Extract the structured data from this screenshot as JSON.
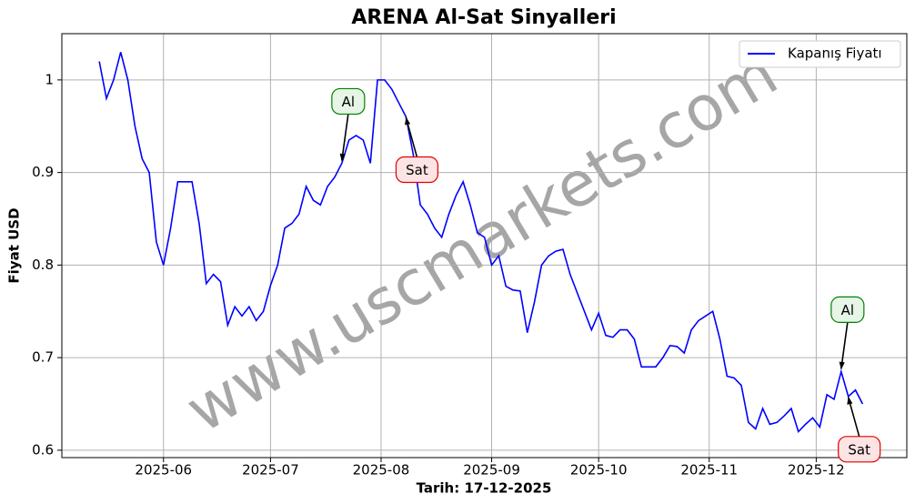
{
  "chart_data": {
    "type": "line",
    "title": "ARENA Al-Sat Sinyalleri",
    "xlabel": "Tarih: 17-12-2025",
    "ylabel": "Fiyat USD",
    "watermark": "www.uscmarkets.com",
    "legend": "upper right",
    "grid": true,
    "series": [
      {
        "name": "Kapanış Fiyatı",
        "color": "#0000ff",
        "values": [
          1.02,
          0.98,
          1.0,
          1.03,
          1.0,
          0.95,
          0.915,
          0.9,
          0.825,
          0.8,
          0.84,
          0.89,
          0.89,
          0.89,
          0.845,
          0.78,
          0.79,
          0.782,
          0.735,
          0.755,
          0.745,
          0.755,
          0.74,
          0.75,
          0.778,
          0.8,
          0.84,
          0.845,
          0.855,
          0.885,
          0.87,
          0.865,
          0.885,
          0.895,
          0.91,
          0.935,
          0.94,
          0.935,
          0.91,
          1.0,
          1.0,
          0.99,
          0.975,
          0.96,
          0.92,
          0.865,
          0.855,
          0.84,
          0.83,
          0.855,
          0.875,
          0.89,
          0.865,
          0.835,
          0.83,
          0.8,
          0.81,
          0.777,
          0.773,
          0.772,
          0.727,
          0.76,
          0.8,
          0.81,
          0.815,
          0.817,
          0.79,
          0.77,
          0.75,
          0.73,
          0.748,
          0.724,
          0.722,
          0.73,
          0.73,
          0.72,
          0.69,
          0.69,
          0.69,
          0.7,
          0.713,
          0.712,
          0.705,
          0.73,
          0.74,
          0.745,
          0.75,
          0.72,
          0.68,
          0.678,
          0.67,
          0.63,
          0.623,
          0.645,
          0.628,
          0.63,
          0.637,
          0.645,
          0.62,
          0.628,
          0.635,
          0.625,
          0.66,
          0.655,
          0.685,
          0.658,
          0.665,
          0.65
        ]
      }
    ],
    "xlim": [
      -5.25,
      113.2
    ],
    "ylim": [
      0.592,
      1.05
    ],
    "xticks": [
      {
        "value": 9,
        "label": "2025-06"
      },
      {
        "value": 24,
        "label": "2025-07"
      },
      {
        "value": 39.5,
        "label": "2025-08"
      },
      {
        "value": 55,
        "label": "2025-09"
      },
      {
        "value": 70,
        "label": "2025-10"
      },
      {
        "value": 85.5,
        "label": "2025-11"
      },
      {
        "value": 100.5,
        "label": "2025-12"
      }
    ],
    "yticks": [
      0.6,
      0.7,
      0.8,
      0.9,
      1.0
    ],
    "annotations": [
      {
        "text": "Al",
        "x": 34,
        "y": 0.91,
        "color": "#008000",
        "fill": "#e6f5e6"
      },
      {
        "text": "Sat",
        "x": 43,
        "y": 0.962,
        "color": "#e00000",
        "fill": "#fde4e4"
      },
      {
        "text": "Al",
        "x": 104,
        "y": 0.685,
        "color": "#008000",
        "fill": "#e6f5e6"
      },
      {
        "text": "Sat",
        "x": 105,
        "y": 0.66,
        "color": "#e00000",
        "fill": "#fde4e4"
      }
    ]
  }
}
